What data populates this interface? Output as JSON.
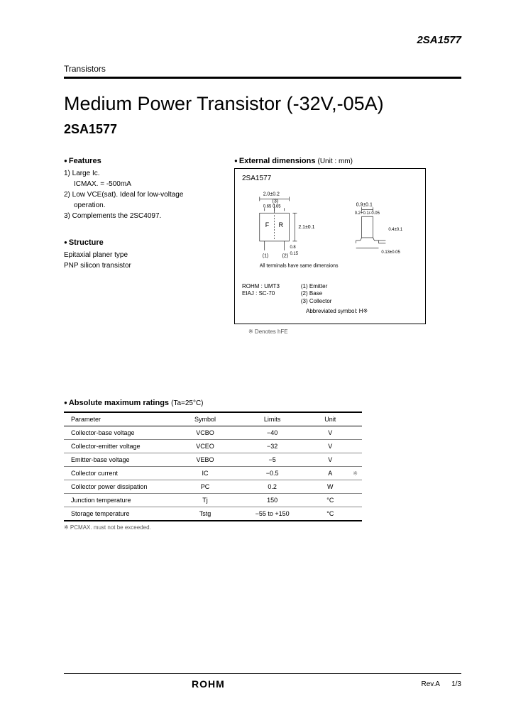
{
  "header": {
    "part_top_right": "2SA1577",
    "category": "Transistors"
  },
  "title": {
    "main": "Medium Power Transistor (-32V,-05A)",
    "part": "2SA1577"
  },
  "features": {
    "heading": "Features",
    "items": [
      "1) Large Ic.",
      "ICMAX. = -500mA",
      "2) Low VCE(sat). Ideal for low-voltage",
      "operation.",
      "3) Complements the 2SC4097."
    ]
  },
  "structure": {
    "heading": "Structure",
    "lines": [
      "Epitaxial planer type",
      "PNP silicon transistor"
    ]
  },
  "external_dimensions": {
    "heading": "External dimensions",
    "unit": "(Unit : mm)",
    "box_part": "2SA1577",
    "dim_labels": {
      "w1": "2.0±0.2",
      "pitch": "0.65 0.65",
      "body_h": "2.1±0.1",
      "lead_s": "0.8",
      "lead_t": "0.15",
      "side_w": "0.9±0.1",
      "side_l": "0.2+0.1/-0.05",
      "foot": "0.4±0.1",
      "thick": "0.13±0.05"
    },
    "terminals_note": "All terminals have same dimensions",
    "pin1": "(1) Emitter",
    "pin2": "(2) Base",
    "pin3": "(3) Collector",
    "pkg1": "ROHM : UMT3",
    "pkg2": "EIAJ : SC-70",
    "abbrev": "Abbreviated symbol: H※",
    "denotes": "※ Denotes hFE"
  },
  "ratings": {
    "heading": "Absolute maximum ratings",
    "ta": "(Ta=25°C)",
    "columns": [
      "Parameter",
      "Symbol",
      "Limits",
      "Unit"
    ],
    "rows": [
      [
        "Collector-base voltage",
        "VCBO",
        "−40",
        "V",
        ""
      ],
      [
        "Collector-emitter voltage",
        "VCEO",
        "−32",
        "V",
        ""
      ],
      [
        "Emitter-base voltage",
        "VEBO",
        "−5",
        "V",
        ""
      ],
      [
        "Collector current",
        "IC",
        "−0.5",
        "A",
        "※"
      ],
      [
        "Collector power dissipation",
        "PC",
        "0.2",
        "W",
        ""
      ],
      [
        "Junction temperature",
        "Tj",
        "150",
        "°C",
        ""
      ],
      [
        "Storage temperature",
        "Tstg",
        "−55 to +150",
        "°C",
        ""
      ]
    ],
    "note": "※ PCMAX. must not be exceeded."
  },
  "footer": {
    "logo": "ROHM",
    "rev": "Rev.A",
    "page": "1/3"
  },
  "colors": {
    "text": "#000000",
    "background": "#ffffff",
    "rule": "#000000",
    "light_rule": "#888888"
  }
}
